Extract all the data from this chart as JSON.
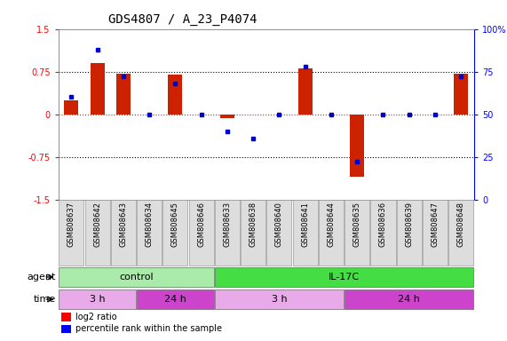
{
  "title": "GDS4807 / A_23_P4074",
  "samples": [
    "GSM808637",
    "GSM808642",
    "GSM808643",
    "GSM808634",
    "GSM808645",
    "GSM808646",
    "GSM808633",
    "GSM808638",
    "GSM808640",
    "GSM808641",
    "GSM808644",
    "GSM808635",
    "GSM808636",
    "GSM808639",
    "GSM808647",
    "GSM808648"
  ],
  "log2_ratio": [
    0.25,
    0.9,
    0.72,
    0.0,
    0.7,
    0.0,
    -0.07,
    0.0,
    0.0,
    0.8,
    0.0,
    -1.1,
    0.0,
    0.0,
    0.0,
    0.72
  ],
  "percentile": [
    60,
    88,
    72,
    50,
    68,
    50,
    40,
    36,
    50,
    78,
    50,
    22,
    50,
    50,
    50,
    72
  ],
  "bar_color": "#cc2200",
  "dot_color": "#0000cc",
  "ylim": [
    -1.5,
    1.5
  ],
  "yticks_left": [
    -1.5,
    -0.75,
    0,
    0.75,
    1.5
  ],
  "yticks_right": [
    0,
    25,
    50,
    75,
    100
  ],
  "hlines_dotted": [
    0.75,
    -0.75
  ],
  "hline_red": 0,
  "agent_groups": [
    {
      "label": "control",
      "start": 0,
      "end": 6,
      "color": "#aaeaaa"
    },
    {
      "label": "IL-17C",
      "start": 6,
      "end": 16,
      "color": "#44dd44"
    }
  ],
  "time_groups": [
    {
      "label": "3 h",
      "start": 0,
      "end": 3,
      "color": "#e8aae8"
    },
    {
      "label": "24 h",
      "start": 3,
      "end": 6,
      "color": "#cc44cc"
    },
    {
      "label": "3 h",
      "start": 6,
      "end": 11,
      "color": "#e8aae8"
    },
    {
      "label": "24 h",
      "start": 11,
      "end": 16,
      "color": "#cc44cc"
    }
  ],
  "legend_red": "log2 ratio",
  "legend_blue": "percentile rank within the sample",
  "agent_label": "agent",
  "time_label": "time",
  "title_fontsize": 10,
  "tick_fontsize": 7,
  "sample_fontsize": 6,
  "row_label_fontsize": 8,
  "group_fontsize": 8
}
